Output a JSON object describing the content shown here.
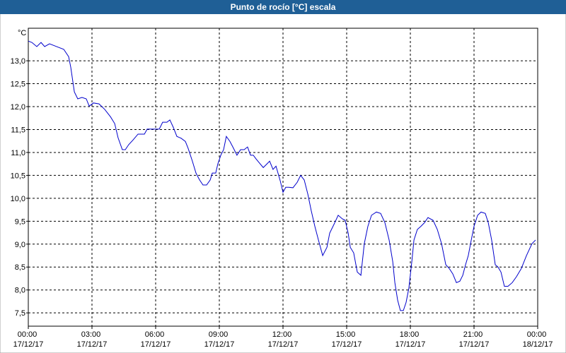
{
  "chart_data": {
    "type": "line",
    "title": "Punto de rocío [°C] escala",
    "y_unit": "°C",
    "x": [
      0,
      0.17,
      0.4,
      0.6,
      0.77,
      1,
      1.33,
      1.67,
      1.9,
      2,
      2.17,
      2.33,
      2.53,
      2.73,
      2.87,
      3.07,
      3.33,
      3.6,
      3.87,
      4.07,
      4.23,
      4.43,
      4.57,
      4.73,
      4.93,
      5.17,
      5.47,
      5.6,
      5.93,
      6.17,
      6.33,
      6.53,
      6.67,
      6.83,
      7,
      7.2,
      7.4,
      7.53,
      7.73,
      7.9,
      8.07,
      8.23,
      8.4,
      8.57,
      8.67,
      8.83,
      8.93,
      9.07,
      9.2,
      9.33,
      9.5,
      9.67,
      9.83,
      10,
      10.17,
      10.33,
      10.47,
      10.6,
      10.73,
      10.87,
      11.07,
      11.2,
      11.37,
      11.53,
      11.67,
      11.87,
      12,
      12.13,
      12.27,
      12.47,
      12.67,
      12.83,
      13,
      13.17,
      13.33,
      13.5,
      13.67,
      13.87,
      14.07,
      14.2,
      14.4,
      14.6,
      14.8,
      14.93,
      15.07,
      15.17,
      15.33,
      15.5,
      15.67,
      15.83,
      16,
      16.17,
      16.4,
      16.6,
      16.8,
      17,
      17.17,
      17.27,
      17.4,
      17.53,
      17.67,
      17.8,
      17.93,
      18.07,
      18.17,
      18.33,
      18.5,
      18.67,
      18.83,
      19.07,
      19.27,
      19.47,
      19.67,
      19.83,
      20,
      20.17,
      20.33,
      20.47,
      20.6,
      20.73,
      20.87,
      21,
      21.17,
      21.33,
      21.53,
      21.67,
      21.83,
      22,
      22.13,
      22.27,
      22.43,
      22.6,
      22.8,
      23,
      23.23,
      23.47,
      23.73,
      23.9
    ],
    "series": [
      {
        "name": "Punto de rocío",
        "color": "#0000cc",
        "values": [
          13.43,
          13.4,
          13.31,
          13.4,
          13.31,
          13.37,
          13.31,
          13.25,
          13.09,
          12.86,
          12.32,
          12.17,
          12.2,
          12.17,
          12.01,
          12.08,
          12.06,
          11.94,
          11.78,
          11.63,
          11.32,
          11.06,
          11.06,
          11.17,
          11.27,
          11.4,
          11.4,
          11.51,
          11.51,
          11.51,
          11.66,
          11.66,
          11.71,
          11.55,
          11.35,
          11.31,
          11.24,
          11.09,
          10.81,
          10.55,
          10.4,
          10.29,
          10.29,
          10.4,
          10.55,
          10.55,
          10.75,
          10.94,
          11.06,
          11.35,
          11.24,
          11.09,
          10.94,
          11.06,
          11.06,
          11.12,
          10.94,
          10.94,
          10.86,
          10.78,
          10.67,
          10.73,
          10.81,
          10.63,
          10.7,
          10.38,
          10.13,
          10.24,
          10.24,
          10.23,
          10.35,
          10.5,
          10.4,
          10.09,
          9.73,
          9.39,
          9.09,
          8.75,
          8.93,
          9.24,
          9.43,
          9.63,
          9.55,
          9.52,
          9.24,
          8.93,
          8.81,
          8.39,
          8.32,
          9.01,
          9.39,
          9.63,
          9.7,
          9.67,
          9.47,
          9.09,
          8.62,
          8.16,
          7.78,
          7.55,
          7.55,
          7.73,
          8.04,
          8.62,
          9.09,
          9.32,
          9.39,
          9.47,
          9.58,
          9.52,
          9.32,
          9.01,
          8.55,
          8.47,
          8.35,
          8.16,
          8.19,
          8.32,
          8.55,
          8.75,
          9.09,
          9.39,
          9.63,
          9.7,
          9.67,
          9.47,
          9.09,
          8.55,
          8.5,
          8.39,
          8.08,
          8.08,
          8.16,
          8.29,
          8.47,
          8.75,
          9.01,
          9.09
        ]
      }
    ],
    "xlim": [
      0,
      24
    ],
    "xticks": [
      {
        "value": 0,
        "label": "00:00\n17/12/17"
      },
      {
        "value": 3,
        "label": "03:00\n17/12/17"
      },
      {
        "value": 6,
        "label": "06:00\n17/12/17"
      },
      {
        "value": 9,
        "label": "09:00\n17/12/17"
      },
      {
        "value": 12,
        "label": "12:00\n17/12/17"
      },
      {
        "value": 15,
        "label": "15:00\n17/12/17"
      },
      {
        "value": 18,
        "label": "18:00\n17/12/17"
      },
      {
        "value": 21,
        "label": "21:00\n17/12/17"
      },
      {
        "value": 24,
        "label": "00:00\n18/12/17"
      }
    ],
    "ylim": [
      7.21,
      13.71
    ],
    "yticks": [
      {
        "value": 7.5,
        "label": "7,5"
      },
      {
        "value": 8,
        "label": "8,0"
      },
      {
        "value": 8.5,
        "label": "8,5"
      },
      {
        "value": 9,
        "label": "9,0"
      },
      {
        "value": 9.5,
        "label": "9,5"
      },
      {
        "value": 10,
        "label": "10,0"
      },
      {
        "value": 10.5,
        "label": "10,5"
      },
      {
        "value": 11,
        "label": "11,0"
      },
      {
        "value": 11.5,
        "label": "11,5"
      },
      {
        "value": 12,
        "label": "12,0"
      },
      {
        "value": 12.5,
        "label": "12,5"
      },
      {
        "value": 13,
        "label": "13,0"
      }
    ],
    "grid": true
  }
}
